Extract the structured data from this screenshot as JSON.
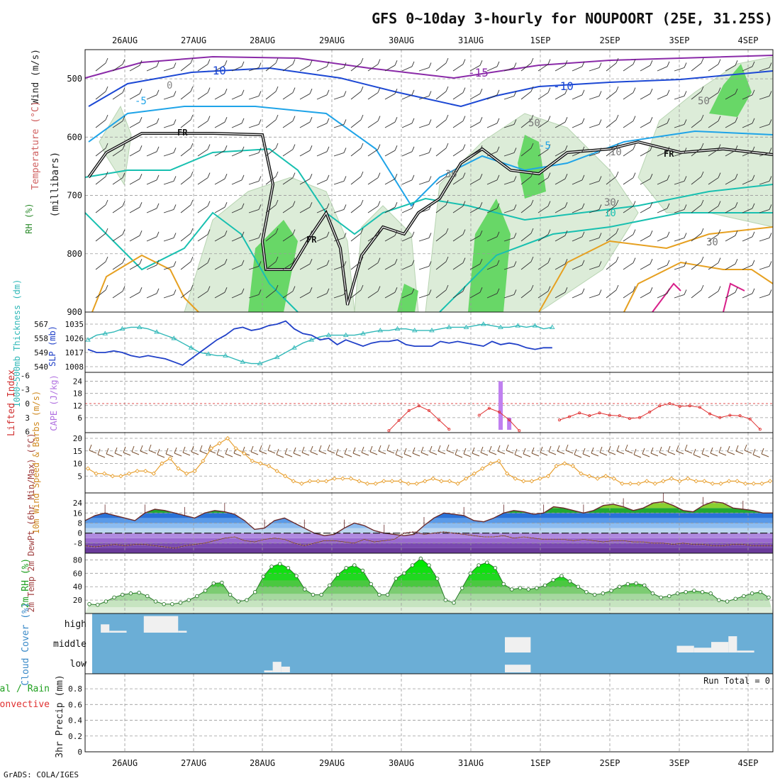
{
  "title": "GFS 0~10day 3-hourly for NOUPOORT (25E, 31.25S)",
  "credit": "GrADS: COLA/IGES",
  "colors": {
    "wind_panel_green_light": "#dcecd8",
    "rh_green": "#54d454",
    "temp_purple": "#8a2aa8",
    "temp_blue": "#1c48d4",
    "temp_cyan": "#1fa4e8",
    "temp_teal": "#18c0b0",
    "temp_orange": "#e6a020",
    "temp_magenta": "#d8208a",
    "slp_line": "#2040c8",
    "thickness_line": "#30b8b8",
    "cape_bar": "#c080f0",
    "lifted_index": "#e03030",
    "wind_speed": "#e8a030",
    "barbs": "#7a5030",
    "rh2m_fill": "#30d030",
    "cloud_bg": "#6baed6",
    "cloud_block": "#f0f0f0"
  },
  "chart_data": [
    {
      "type": "contour",
      "panel": "upper-air",
      "xlabels": [
        "26AUG",
        "27AUG",
        "28AUG",
        "29AUG",
        "30AUG",
        "31AUG",
        "1SEP",
        "2SEP",
        "3SEP",
        "4SEP"
      ],
      "ylabel_parts": [
        "Wind (m/s)",
        "Temperature (°C)",
        "RH (%)",
        "(millibars)"
      ],
      "y_ticks": [
        500,
        600,
        700,
        800,
        900
      ],
      "ylim": [
        450,
        900
      ],
      "contour_labels": [
        "-10",
        "-15",
        "-10",
        "-5",
        "-5",
        "0",
        "FR",
        "FR",
        "FR",
        "10",
        "30",
        "50",
        "50",
        "30",
        "10",
        "30"
      ]
    },
    {
      "type": "line",
      "panel": "slp-thickness",
      "ylabel_left": "1000~500mb Thickness (dm)",
      "ylabel_right": "SLP (mb)",
      "y_ticks_left": [
        "567",
        "558",
        "549",
        "540"
      ],
      "y_ticks_right": [
        "1035",
        "1026",
        "1017",
        "1008"
      ],
      "ylim_thickness": [
        540,
        567
      ],
      "ylim_slp": [
        1008,
        1035
      ],
      "series": [
        {
          "name": "Thickness",
          "values": [
            557,
            560,
            561,
            562,
            564,
            565,
            565,
            564,
            562,
            560,
            558,
            555,
            552,
            549,
            548,
            547,
            547,
            545,
            543,
            542,
            542,
            544,
            546,
            549,
            552,
            555,
            557,
            559,
            560,
            560,
            560,
            560,
            561,
            562,
            563,
            563,
            564,
            564,
            563,
            563,
            563,
            564,
            565,
            565,
            565,
            566,
            567,
            566,
            565,
            565,
            566,
            565,
            566,
            564,
            565
          ]
        },
        {
          "name": "SLP",
          "values": [
            1019,
            1017,
            1017,
            1018,
            1017,
            1015,
            1014,
            1015,
            1014,
            1013,
            1011,
            1009,
            1013,
            1017,
            1021,
            1025,
            1028,
            1032,
            1033,
            1031,
            1032,
            1034,
            1035,
            1037,
            1032,
            1029,
            1028,
            1025,
            1026,
            1022,
            1025,
            1023,
            1021,
            1023,
            1024,
            1024,
            1025,
            1022,
            1021,
            1021,
            1021,
            1024,
            1023,
            1024,
            1023,
            1022,
            1021,
            1024,
            1022,
            1023,
            1022,
            1020,
            1019,
            1020,
            1020
          ]
        }
      ]
    },
    {
      "type": "bar",
      "panel": "cape-lifted-index",
      "ylabel_left": "Lifted Index",
      "ylabel_right": "CAPE (J/kg)",
      "y_ticks_left": [
        "-6",
        "-3",
        "0",
        "3",
        "6"
      ],
      "y_ticks_right": [
        "24",
        "18",
        "12",
        "6"
      ],
      "ylim_cape": [
        0,
        27
      ],
      "cape_bars": [
        {
          "step": 48,
          "value": 24
        },
        {
          "step": 49,
          "value": 6
        }
      ],
      "lifted_index": [
        null,
        null,
        null,
        null,
        null,
        null,
        null,
        null,
        null,
        null,
        null,
        null,
        null,
        null,
        null,
        null,
        null,
        null,
        null,
        null,
        null,
        null,
        null,
        null,
        null,
        null,
        null,
        null,
        null,
        null,
        5.8,
        3.6,
        1.5,
        0.5,
        1.5,
        3.5,
        5.5,
        null,
        null,
        2.5,
        1.0,
        1.8,
        3.5,
        5.8,
        null,
        null,
        null,
        3.5,
        2.8,
        2.0,
        2.6,
        2.0,
        2.5,
        2.6,
        3.2,
        3.0,
        1.8,
        0.5,
        0.0,
        0.6,
        0.5,
        0.8,
        2.2,
        3.0,
        2.5,
        2.6,
        3.3,
        5.5
      ]
    },
    {
      "type": "line",
      "panel": "wind10m",
      "ylabel": "10m Wind Speed & Barbs (m/s)",
      "y_ticks": [
        "20",
        "15",
        "10",
        "5"
      ],
      "ylim": [
        0,
        20
      ],
      "series": [
        {
          "name": "Wind Speed",
          "values": [
            8,
            6,
            6,
            5,
            5,
            6,
            7,
            7,
            6,
            10,
            12,
            8,
            6,
            7,
            11,
            16,
            18,
            20,
            16,
            14,
            11,
            10,
            9,
            7,
            5,
            3,
            2,
            3,
            3,
            3,
            4,
            4,
            4,
            3,
            2,
            2,
            3,
            3,
            3,
            2,
            2,
            3,
            4,
            3,
            3,
            2,
            4,
            6,
            8,
            10,
            11,
            6,
            4,
            3,
            3,
            4,
            5,
            9,
            10,
            9,
            6,
            5,
            4,
            5,
            4,
            2,
            2,
            2,
            3,
            2,
            3,
            4,
            3,
            4,
            3,
            3,
            2,
            2,
            3,
            3,
            2,
            2,
            2,
            3
          ]
        }
      ]
    },
    {
      "type": "area",
      "panel": "temperature",
      "ylabel": "2m Temp 2m DewPt (6hr Min/Max) (°C)",
      "y_ticks": [
        "24",
        "16",
        "8",
        "0",
        "-8"
      ],
      "ylim": [
        -16,
        32
      ],
      "series": [
        {
          "name": "2m Temp",
          "values": [
            10,
            14,
            16,
            14,
            12,
            10,
            16,
            19,
            18,
            16,
            14,
            12,
            16,
            18,
            17,
            15,
            10,
            3,
            4,
            10,
            12,
            8,
            4,
            0,
            -2,
            -1,
            4,
            8,
            6,
            2,
            0,
            -1,
            -2,
            -1,
            6,
            12,
            16,
            15,
            14,
            10,
            9,
            12,
            16,
            18,
            17,
            15,
            16,
            21,
            20,
            18,
            16,
            18,
            22,
            23,
            21,
            18,
            20,
            24,
            25,
            22,
            18,
            17,
            22,
            25,
            24,
            20,
            19,
            18,
            16,
            16
          ]
        },
        {
          "name": "2m DewPt",
          "values": [
            -10,
            -11,
            -10,
            -9,
            -10,
            -9,
            -9,
            -10,
            -11,
            -12,
            -10,
            -9,
            -8,
            -6,
            -4,
            -3,
            -6,
            -7,
            -5,
            -4,
            -5,
            -8,
            -10,
            -8,
            -6,
            -6,
            -7,
            -8,
            -5,
            -7,
            -6,
            -5,
            0,
            1,
            -1,
            0,
            1,
            0,
            -1,
            -2,
            -3,
            -3,
            -2,
            -4,
            -3,
            -4,
            -5,
            -5,
            -5,
            -6,
            -5,
            -6,
            -7,
            -6,
            -6,
            -7,
            -7,
            -8,
            -8,
            -9,
            -8,
            -9,
            -9,
            -10,
            -10,
            -9,
            -9,
            -10,
            -10,
            -10
          ]
        }
      ]
    },
    {
      "type": "area",
      "panel": "rh2m",
      "ylabel": "2m RH (%)",
      "y_ticks": [
        "80",
        "60",
        "40",
        "20"
      ],
      "ylim": [
        0,
        90
      ],
      "series": [
        {
          "name": "2m RH",
          "values": [
            14,
            13,
            18,
            24,
            28,
            30,
            31,
            26,
            18,
            14,
            14,
            16,
            20,
            26,
            34,
            45,
            46,
            28,
            18,
            20,
            32,
            55,
            70,
            74,
            68,
            56,
            36,
            28,
            28,
            42,
            58,
            68,
            72,
            64,
            44,
            28,
            28,
            52,
            60,
            72,
            82,
            72,
            52,
            20,
            16,
            38,
            60,
            72,
            76,
            68,
            44,
            36,
            38,
            36,
            38,
            42,
            50,
            56,
            48,
            40,
            32,
            28,
            30,
            34,
            40,
            44,
            45,
            42,
            30,
            24,
            26,
            30,
            32,
            34,
            32,
            30,
            20,
            18,
            22,
            26,
            30,
            32,
            24
          ]
        }
      ]
    },
    {
      "type": "table",
      "panel": "cloud-cover",
      "ylabel": "Cloud Cover (%)",
      "levels": [
        "high",
        "middle",
        "low"
      ],
      "high": [
        {
          "from": 1,
          "to": 2,
          "value": 0.45
        },
        {
          "from": 2,
          "to": 4,
          "value": 0.1
        },
        {
          "from": 6,
          "to": 10,
          "value": 0.9
        },
        {
          "from": 10,
          "to": 11,
          "value": 0.1
        }
      ],
      "middle": [
        {
          "from": 48,
          "to": 51,
          "value": 0.8
        },
        {
          "from": 68,
          "to": 70,
          "value": 0.35
        },
        {
          "from": 70,
          "to": 72,
          "value": 0.25
        },
        {
          "from": 72,
          "to": 74,
          "value": 0.55
        },
        {
          "from": 74,
          "to": 75,
          "value": 0.85
        },
        {
          "from": 75,
          "to": 77,
          "value": 0.1
        }
      ],
      "low": [
        {
          "from": 20,
          "to": 21,
          "value": 0.1
        },
        {
          "from": 21,
          "to": 22,
          "value": 0.55
        },
        {
          "from": 22,
          "to": 23,
          "value": 0.3
        },
        {
          "from": 48,
          "to": 51,
          "value": 0.4
        }
      ]
    },
    {
      "type": "bar",
      "panel": "precip",
      "ylabel_left": "Total / Rain Convective",
      "ylabel_right": "3hr Precip (mm)",
      "run_total": "Run Total = 0",
      "y_ticks": [
        "0.8",
        "0.6",
        "0.4",
        "0.2",
        "0"
      ],
      "ylim": [
        0,
        0.9
      ],
      "values": []
    }
  ]
}
